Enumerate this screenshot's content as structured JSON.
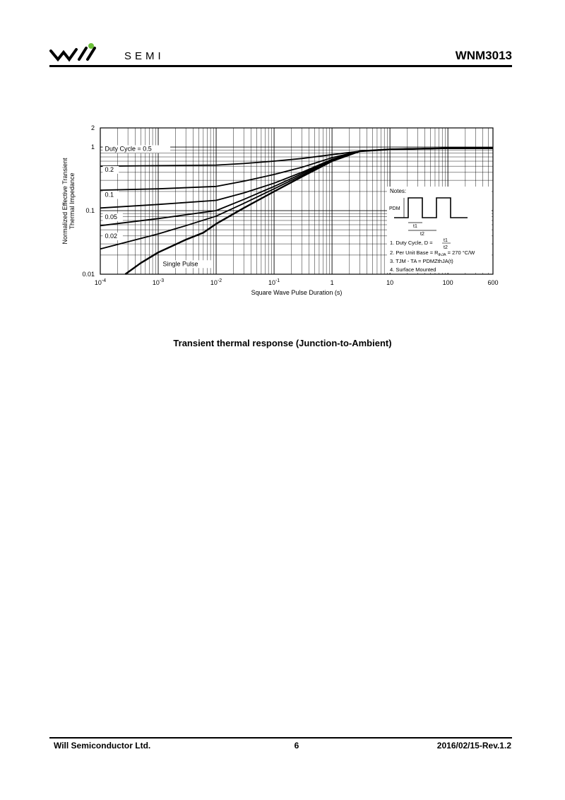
{
  "header": {
    "logo_text": "SEMI",
    "part_number": "WNM3013"
  },
  "chart_data": {
    "type": "line",
    "xscale": "log",
    "yscale": "log",
    "xlim": [
      0.0001,
      600
    ],
    "ylim": [
      0.01,
      2
    ],
    "xlabel": "Square Wave Pulse Duration (s)",
    "ylabel_lines": [
      "Normalized Effective Transient",
      "Thermal Impedance"
    ],
    "x_ticks": [
      {
        "v": 0.0001,
        "base": "10",
        "exp": "-4"
      },
      {
        "v": 0.001,
        "base": "10",
        "exp": "-3"
      },
      {
        "v": 0.01,
        "base": "10",
        "exp": "-2"
      },
      {
        "v": 0.1,
        "base": "10",
        "exp": "-1"
      },
      {
        "v": 1,
        "base": "1",
        "exp": ""
      },
      {
        "v": 10,
        "base": "10",
        "exp": ""
      },
      {
        "v": 100,
        "base": "100",
        "exp": ""
      },
      {
        "v": 600,
        "base": "600",
        "exp": ""
      }
    ],
    "y_ticks": [
      {
        "v": 2,
        "label": "2"
      },
      {
        "v": 1,
        "label": "1"
      },
      {
        "v": 0.1,
        "label": "0.1"
      },
      {
        "v": 0.01,
        "label": "0.01"
      }
    ],
    "series": [
      {
        "name": "Duty Cycle = 0.5",
        "label_x": 0.00012,
        "label_y": 0.87,
        "x": [
          0.0001,
          0.001,
          0.01,
          0.03,
          0.1,
          0.3,
          1,
          3,
          10,
          100,
          600
        ],
        "y": [
          0.5,
          0.51,
          0.52,
          0.55,
          0.6,
          0.66,
          0.76,
          0.86,
          0.92,
          0.96,
          0.96
        ]
      },
      {
        "name": "0.2",
        "label_x": 0.00012,
        "label_y": 0.41,
        "x": [
          0.0001,
          0.001,
          0.01,
          0.03,
          0.1,
          0.3,
          1,
          3,
          10,
          100,
          600
        ],
        "y": [
          0.21,
          0.22,
          0.24,
          0.29,
          0.37,
          0.48,
          0.68,
          0.86,
          0.92,
          0.96,
          0.96
        ]
      },
      {
        "name": "0.1",
        "label_x": 0.00012,
        "label_y": 0.165,
        "x": [
          0.0001,
          0.001,
          0.01,
          0.03,
          0.1,
          0.3,
          1,
          3,
          10,
          100,
          600
        ],
        "y": [
          0.11,
          0.125,
          0.145,
          0.19,
          0.27,
          0.4,
          0.64,
          0.86,
          0.92,
          0.96,
          0.96
        ]
      },
      {
        "name": "0.05",
        "label_x": 0.00012,
        "label_y": 0.074,
        "x": [
          0.0001,
          0.001,
          0.01,
          0.03,
          0.1,
          0.3,
          1,
          3,
          10,
          100,
          600
        ],
        "y": [
          0.058,
          0.075,
          0.1,
          0.15,
          0.24,
          0.38,
          0.63,
          0.86,
          0.92,
          0.96,
          0.96
        ]
      },
      {
        "name": "0.02",
        "label_x": 0.00012,
        "label_y": 0.037,
        "x": [
          0.0001,
          0.001,
          0.003,
          0.01,
          0.03,
          0.1,
          0.3,
          1,
          3,
          10,
          100,
          600
        ],
        "y": [
          0.025,
          0.043,
          0.058,
          0.082,
          0.13,
          0.22,
          0.36,
          0.62,
          0.86,
          0.92,
          0.96,
          0.96
        ]
      },
      {
        "name": "Single Pulse",
        "label_x": 0.0012,
        "label_y": 0.0135,
        "x": [
          0.00027,
          0.0005,
          0.001,
          0.003,
          0.006,
          0.01,
          0.03,
          0.1,
          0.3,
          1,
          3,
          10,
          100,
          600
        ],
        "y": [
          0.01,
          0.015,
          0.022,
          0.035,
          0.045,
          0.062,
          0.11,
          0.2,
          0.34,
          0.6,
          0.86,
          0.92,
          0.96,
          0.96
        ]
      }
    ],
    "notes": {
      "title": "Notes:",
      "pdm_label": "PDM",
      "t1_label": "t1",
      "t2_label": "t2",
      "line1_prefix": "1. Duty Cycle, D =",
      "line1_num": "t1",
      "line1_den": "t2",
      "line2": "2. Per Unit Base = R",
      "line2_sub": "thJA",
      "line2_value": " = 270 °C/W",
      "line3": "3. TJM - TA = PDMZthJA(t)",
      "line4": "4. Surface Mounted"
    }
  },
  "caption": "Transient thermal response (Junction-to-Ambient)",
  "footer": {
    "company": "Will  Semiconductor  Ltd.",
    "page": "6",
    "date_rev": "2016/02/15-Rev.1.2"
  }
}
